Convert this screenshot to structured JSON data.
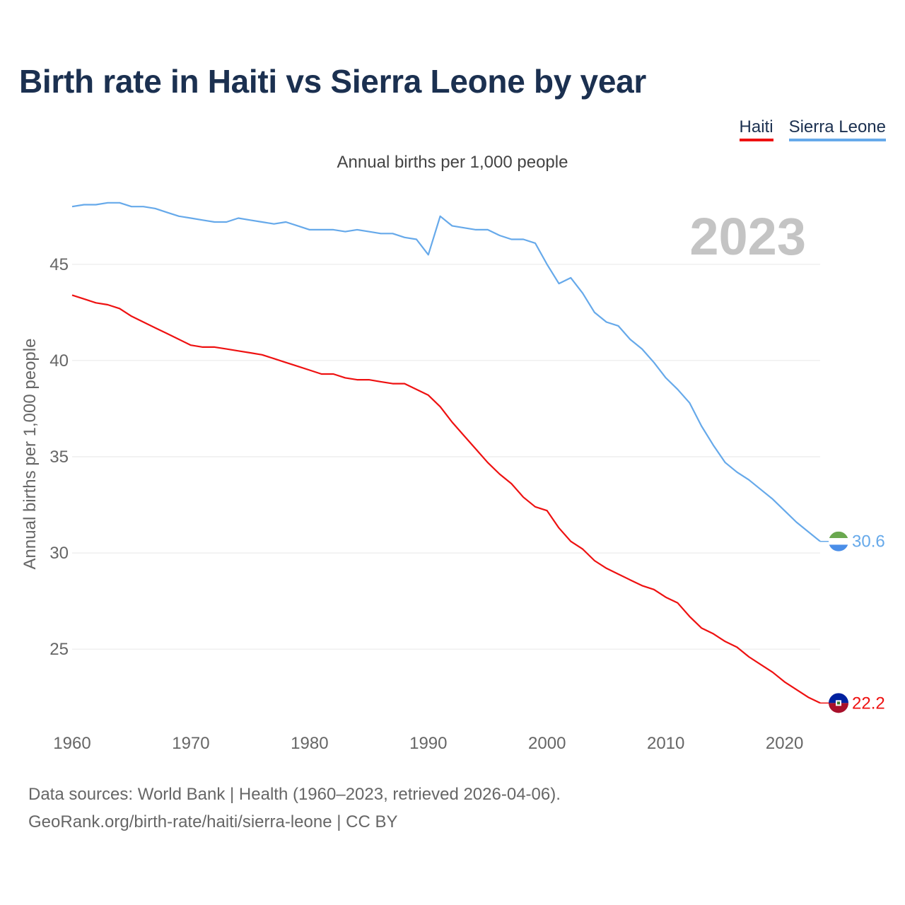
{
  "header": {
    "title": "Birth rate in Haiti vs Sierra Leone by year",
    "subtitle": "Annual births per 1,000 people"
  },
  "legend": [
    {
      "name": "Haiti",
      "color": "#ee1111"
    },
    {
      "name": "Sierra Leone",
      "color": "#66a9ea"
    }
  ],
  "footer": {
    "line1": "Data sources: World Bank | Health (1960–2023, retrieved 2026-04-06).",
    "line2": "GeoRank.org/birth-rate/haiti/sierra-leone | CC BY"
  },
  "chart_data": {
    "type": "line",
    "title": "Birth rate in Haiti vs Sierra Leone by year",
    "xlabel": "",
    "ylabel": "Annual births per 1,000 people",
    "year_label": "2023",
    "xlim": [
      1960,
      2023
    ],
    "ylim": [
      21,
      49
    ],
    "x_ticks": [
      1960,
      1970,
      1980,
      1990,
      2000,
      2010,
      2020
    ],
    "y_ticks": [
      25,
      30,
      35,
      40,
      45
    ],
    "grid": true,
    "x": [
      1960,
      1961,
      1962,
      1963,
      1964,
      1965,
      1966,
      1967,
      1968,
      1969,
      1970,
      1971,
      1972,
      1973,
      1974,
      1975,
      1976,
      1977,
      1978,
      1979,
      1980,
      1981,
      1982,
      1983,
      1984,
      1985,
      1986,
      1987,
      1988,
      1989,
      1990,
      1991,
      1992,
      1993,
      1994,
      1995,
      1996,
      1997,
      1998,
      1999,
      2000,
      2001,
      2002,
      2003,
      2004,
      2005,
      2006,
      2007,
      2008,
      2009,
      2010,
      2011,
      2012,
      2013,
      2014,
      2015,
      2016,
      2017,
      2018,
      2019,
      2020,
      2021,
      2022,
      2023
    ],
    "series": [
      {
        "name": "Haiti",
        "color": "#ee1111",
        "end_label": "22.2",
        "values": [
          43.4,
          43.2,
          43.0,
          42.9,
          42.7,
          42.3,
          42.0,
          41.7,
          41.4,
          41.1,
          40.8,
          40.7,
          40.7,
          40.6,
          40.5,
          40.4,
          40.3,
          40.1,
          39.9,
          39.7,
          39.5,
          39.3,
          39.3,
          39.1,
          39.0,
          39.0,
          38.9,
          38.8,
          38.8,
          38.5,
          38.2,
          37.6,
          36.8,
          36.1,
          35.4,
          34.7,
          34.1,
          33.6,
          32.9,
          32.4,
          32.2,
          31.3,
          30.6,
          30.2,
          29.6,
          29.2,
          28.9,
          28.6,
          28.3,
          28.1,
          27.7,
          27.4,
          26.7,
          26.1,
          25.8,
          25.4,
          25.1,
          24.6,
          24.2,
          23.8,
          23.3,
          22.9,
          22.5,
          22.2
        ]
      },
      {
        "name": "Sierra Leone",
        "color": "#66a9ea",
        "end_label": "30.6",
        "values": [
          48.0,
          48.1,
          48.1,
          48.2,
          48.2,
          48.0,
          48.0,
          47.9,
          47.7,
          47.5,
          47.4,
          47.3,
          47.2,
          47.2,
          47.4,
          47.3,
          47.2,
          47.1,
          47.2,
          47.0,
          46.8,
          46.8,
          46.8,
          46.7,
          46.8,
          46.7,
          46.6,
          46.6,
          46.4,
          46.3,
          45.5,
          47.5,
          47.0,
          46.9,
          46.8,
          46.8,
          46.5,
          46.3,
          46.3,
          46.1,
          45.0,
          44.0,
          44.3,
          43.5,
          42.5,
          42.0,
          41.8,
          41.1,
          40.6,
          39.9,
          39.1,
          38.5,
          37.8,
          36.6,
          35.6,
          34.7,
          34.2,
          33.8,
          33.3,
          32.8,
          32.2,
          31.6,
          31.1,
          30.6
        ]
      }
    ]
  }
}
